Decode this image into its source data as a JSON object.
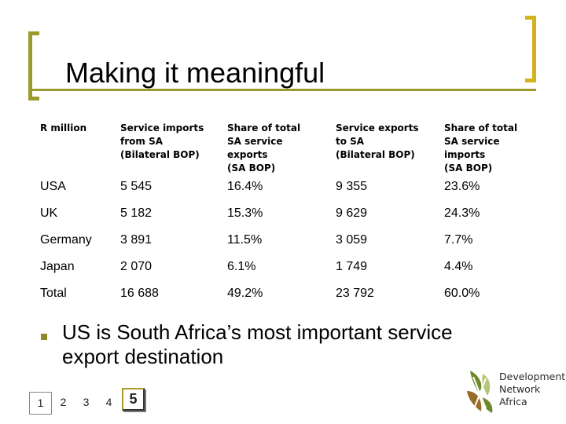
{
  "slide": {
    "title": "Making it meaningful"
  },
  "table": {
    "headers": [
      [
        "R million"
      ],
      [
        "Service imports",
        "from SA",
        "(Bilateral BOP)"
      ],
      [
        "Share of total",
        "SA service",
        "exports",
        "(SA BOP)"
      ],
      [
        "Service exports",
        "to SA",
        "(Bilateral BOP)"
      ],
      [
        "Share of total",
        "SA service",
        "imports",
        "(SA BOP)"
      ]
    ],
    "rows": [
      [
        "USA",
        "5 545",
        "16.4%",
        "9 355",
        "23.6%"
      ],
      [
        "UK",
        "5 182",
        "15.3%",
        "9 629",
        "24.3%"
      ],
      [
        "Germany",
        "3 891",
        "11.5%",
        "3 059",
        "7.7%"
      ],
      [
        "Japan",
        "2 070",
        "6.1%",
        "1 749",
        "4.4%"
      ],
      [
        "Total",
        "16 688",
        "49.2%",
        "23 792",
        "60.0%"
      ]
    ]
  },
  "bullet": {
    "text": "US is South Africa’s most important service export destination"
  },
  "pager": {
    "pages": [
      "1",
      "2",
      "3",
      "4",
      "5"
    ],
    "current": "5"
  },
  "logo": {
    "lines": [
      "Development",
      "Network",
      "Africa"
    ],
    "icon": "dna-leaf-icon",
    "colors": {
      "green": "#6d8a2a",
      "brown": "#9a6a2a",
      "light": "#b7c77a"
    }
  },
  "colors": {
    "bracket_left": "#9c9a2e",
    "bracket_right": "#d4b21a",
    "bullet": "#8c8a27"
  }
}
